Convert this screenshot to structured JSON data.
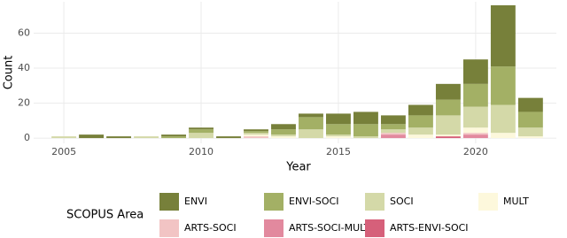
{
  "chart_data": {
    "type": "stacked_bar",
    "x_label": "Year",
    "y_label": "Count",
    "legend_title": "SCOPUS Area",
    "x": [
      2005,
      2006,
      2007,
      2008,
      2009,
      2010,
      2011,
      2012,
      2013,
      2014,
      2015,
      2016,
      2017,
      2018,
      2019,
      2020,
      2021,
      2022
    ],
    "series": [
      {
        "name": "ENVI",
        "color": "#77803a",
        "values": [
          0,
          2,
          1,
          0,
          1,
          1,
          1,
          1,
          3,
          2,
          6,
          7,
          5,
          6,
          9,
          14,
          35,
          8
        ]
      },
      {
        "name": "ENVI-SOCI",
        "color": "#a3b065",
        "values": [
          0,
          0,
          0,
          0,
          1,
          2,
          0,
          1,
          3,
          7,
          6,
          7,
          3,
          7,
          9,
          13,
          22,
          9
        ]
      },
      {
        "name": "SOCI",
        "color": "#d4d9a8",
        "values": [
          1,
          0,
          0,
          1,
          0,
          3,
          0,
          1,
          1,
          5,
          1,
          1,
          2,
          4,
          11,
          12,
          16,
          5
        ]
      },
      {
        "name": "MULT",
        "color": "#fdf8dc",
        "values": [
          0,
          0,
          0,
          0,
          0,
          0,
          0,
          1,
          1,
          0,
          1,
          0,
          0,
          2,
          1,
          3,
          3,
          1
        ]
      },
      {
        "name": "ARTS-SOCI",
        "color": "#f2c4c4",
        "values": [
          0,
          0,
          0,
          0,
          0,
          0,
          0,
          1,
          0,
          0,
          0,
          0,
          1,
          0,
          0,
          1,
          0,
          0
        ]
      },
      {
        "name": "ARTS-SOCI-MULT",
        "color": "#e2899e",
        "values": [
          0,
          0,
          0,
          0,
          0,
          0,
          0,
          0,
          0,
          0,
          0,
          0,
          2,
          0,
          0,
          2,
          0,
          0
        ]
      },
      {
        "name": "ARTS-ENVI-SOCI",
        "color": "#d6607a",
        "values": [
          0,
          0,
          0,
          0,
          0,
          0,
          0,
          0,
          0,
          0,
          0,
          0,
          0,
          0,
          1,
          0,
          0,
          0
        ]
      }
    ],
    "xlim": [
      2003.9,
      2022.94
    ],
    "xticks": [
      2005,
      2010,
      2015,
      2020
    ],
    "ylim": [
      -3,
      78
    ],
    "yticks": [
      0,
      20,
      40,
      60
    ],
    "grid": true
  }
}
